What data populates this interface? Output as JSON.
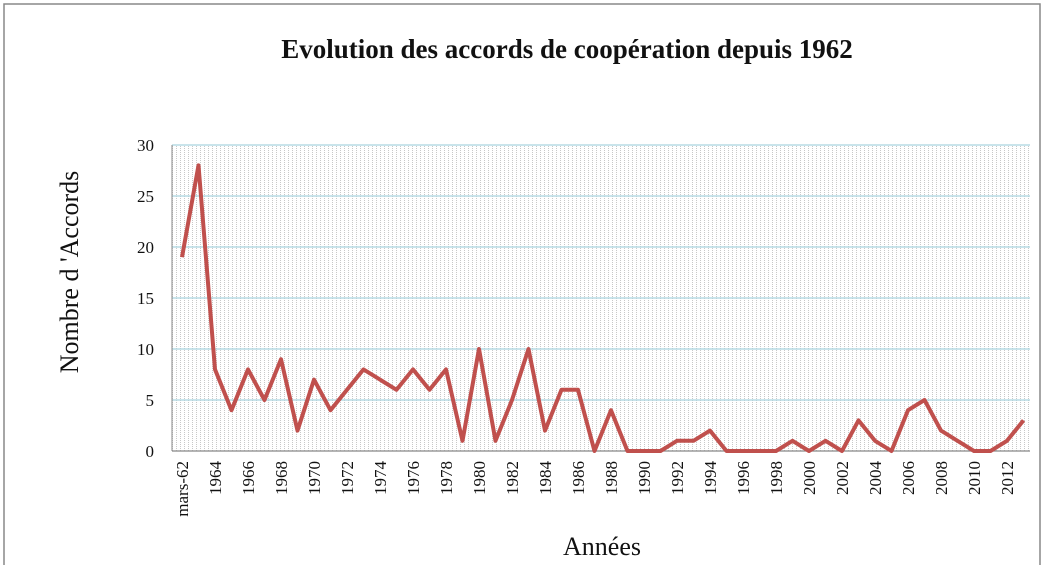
{
  "chart_data": {
    "type": "line",
    "title": "Evolution des accords de coopération depuis 1962",
    "y_label": "Nombre d 'Accords",
    "x_label": "Années",
    "categories": [
      "mars-62",
      null,
      "1964",
      null,
      "1966",
      null,
      "1968",
      null,
      "1970",
      null,
      "1972",
      null,
      "1974",
      null,
      "1976",
      null,
      "1978",
      null,
      "1980",
      null,
      "1982",
      null,
      "1984",
      null,
      "1986",
      null,
      "1988",
      null,
      "1990",
      null,
      "1992",
      null,
      "1994",
      null,
      "1996",
      null,
      "1998",
      null,
      "2000",
      null,
      "2002",
      null,
      "2004",
      null,
      "2006",
      null,
      "2008",
      null,
      "2010",
      null,
      "2012",
      null
    ],
    "series": [
      {
        "name": "Accords",
        "color": "#c0504d",
        "values": [
          19,
          28,
          8,
          4,
          8,
          5,
          9,
          2,
          7,
          4,
          6,
          8,
          7,
          6,
          8,
          6,
          8,
          1,
          10,
          1,
          5,
          10,
          2,
          6,
          6,
          0,
          4,
          0,
          0,
          0,
          1,
          1,
          2,
          0,
          0,
          0,
          0,
          1,
          0,
          1,
          0,
          3,
          1,
          0,
          4,
          5,
          2,
          1,
          0,
          0,
          1,
          3
        ]
      }
    ],
    "ylim": [
      0,
      30
    ],
    "yticks": [
      0,
      5,
      10,
      15,
      20,
      25,
      30
    ],
    "grid": true
  }
}
